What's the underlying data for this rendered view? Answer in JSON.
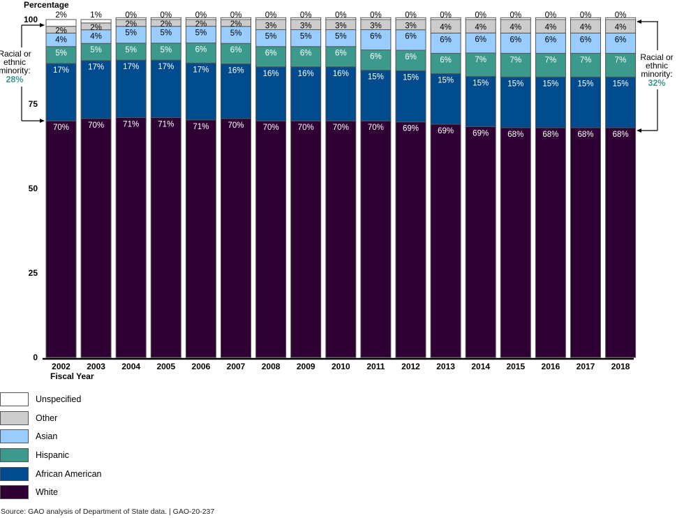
{
  "chart_data": {
    "type": "bar",
    "stacked": true,
    "title": "",
    "ylabel": "Percentage",
    "xlabel": "Fiscal Year",
    "ylim": [
      0,
      100
    ],
    "yticks": [
      0,
      25,
      50,
      75,
      100
    ],
    "categories": [
      "2002",
      "2003",
      "2004",
      "2005",
      "2006",
      "2007",
      "2008",
      "2009",
      "2010",
      "2011",
      "2012",
      "2013",
      "2014",
      "2015",
      "2016",
      "2017",
      "2018"
    ],
    "series": [
      {
        "name": "White",
        "color": "#2e0033",
        "label_color": "#ffffff",
        "values": [
          70,
          70,
          71,
          71,
          71,
          70,
          70,
          70,
          70,
          70,
          69,
          69,
          69,
          68,
          68,
          68,
          68
        ]
      },
      {
        "name": "African American",
        "color": "#004b8d",
        "label_color": "#ffffff",
        "values": [
          17,
          17,
          17,
          17,
          17,
          16,
          16,
          16,
          16,
          15,
          15,
          15,
          15,
          15,
          15,
          15,
          15
        ]
      },
      {
        "name": "Hispanic",
        "color": "#3c9a8c",
        "label_color": "#ffffff",
        "values": [
          5,
          5,
          5,
          5,
          6,
          6,
          6,
          6,
          6,
          6,
          6,
          6,
          7,
          7,
          7,
          7,
          7
        ]
      },
      {
        "name": "Asian",
        "color": "#99ccff",
        "label_color": "#000000",
        "values": [
          4,
          4,
          5,
          5,
          5,
          5,
          5,
          5,
          5,
          6,
          6,
          6,
          6,
          6,
          6,
          6,
          6
        ]
      },
      {
        "name": "Other",
        "color": "#cccccc",
        "label_color": "#000000",
        "values": [
          2,
          2,
          2,
          2,
          2,
          2,
          3,
          3,
          3,
          3,
          3,
          4,
          4,
          4,
          4,
          4,
          4
        ]
      },
      {
        "name": "Unspecified",
        "color": "#ffffff",
        "label_color": "#000000",
        "values": [
          2,
          1,
          0,
          0,
          0,
          0,
          0,
          0,
          0,
          0,
          0,
          0,
          0,
          0,
          0,
          0,
          0
        ]
      }
    ],
    "legend": {
      "placement": "bottom-left",
      "order": [
        "Unspecified",
        "Other",
        "Asian",
        "Hispanic",
        "African American",
        "White"
      ]
    },
    "annotations": [
      {
        "text_lines": [
          "Racial or",
          "ethnic",
          "minority:"
        ],
        "value": "28%",
        "side": "left",
        "year": "2002"
      },
      {
        "text_lines": [
          "Racial or",
          "ethnic",
          "minority:"
        ],
        "value": "32%",
        "side": "right",
        "year": "2018"
      }
    ],
    "grid": false
  },
  "source": "Source: GAO analysis of Department of State data.  |  GAO-20-237"
}
